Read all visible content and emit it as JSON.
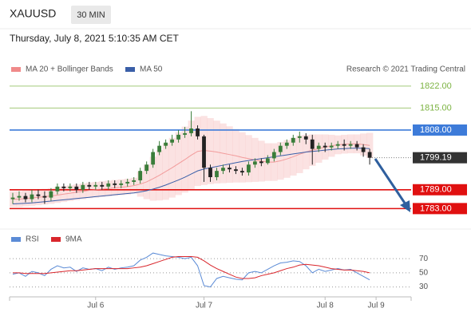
{
  "header": {
    "symbol": "XAUUSD",
    "timeframe": "30 MIN",
    "timestamp": "Thursday, July 8, 2021 5:10:35 AM CET"
  },
  "chart_data": [
    {
      "type": "candlestick",
      "source": "Research © 2021 Trading Central",
      "ylim": [
        1777,
        1824
      ],
      "up_color": "#3a7d3a",
      "down_color": "#222222",
      "open": [
        1786,
        1786.5,
        1787,
        1786,
        1787.5,
        1787,
        1786.5,
        1788.5,
        1790,
        1789.5,
        1790,
        1789,
        1790.5,
        1790,
        1790.5,
        1790,
        1791,
        1790.5,
        1791,
        1791.5,
        1792,
        1795,
        1797,
        1801,
        1803,
        1804,
        1805,
        1806.5,
        1807,
        1808.5,
        1806,
        1796,
        1793,
        1795,
        1796,
        1795.5,
        1795,
        1794.5,
        1797,
        1798,
        1797.5,
        1799,
        1801,
        1803,
        1804,
        1805.5,
        1806,
        1805,
        1802,
        1803,
        1802.5,
        1803,
        1803.5,
        1803,
        1803.5,
        1802.5,
        1801,
        null,
        null,
        null,
        null,
        null,
        null
      ],
      "high": [
        1788,
        1788.5,
        1788,
        1789,
        1789,
        1788.5,
        1789.5,
        1791,
        1791,
        1791,
        1791,
        1791.5,
        1791.5,
        1791.5,
        1791.5,
        1792,
        1792,
        1792,
        1792.5,
        1793,
        1796,
        1798,
        1802,
        1804.5,
        1805,
        1806.5,
        1808,
        1809,
        1814,
        1809.5,
        1806.5,
        1797,
        1796,
        1797,
        1797,
        1796.5,
        1796,
        1798,
        1799,
        1799,
        1800,
        1802,
        1804,
        1805,
        1806.5,
        1807.5,
        1807,
        1806.5,
        1804,
        1804,
        1804,
        1804.5,
        1805,
        1804.5,
        1804.5,
        1803.5,
        1802,
        null,
        null,
        null,
        null,
        null,
        null
      ],
      "low": [
        1784.5,
        1785.5,
        1785,
        1785,
        1786,
        1784.5,
        1785.5,
        1787.5,
        1788.5,
        1788.5,
        1788,
        1788,
        1789,
        1789,
        1789,
        1789,
        1789.5,
        1789.5,
        1790,
        1790.5,
        1791,
        1794,
        1796,
        1800,
        1802,
        1803,
        1804,
        1805.5,
        1806,
        1805,
        1791.5,
        1791.5,
        1792,
        1794,
        1794.5,
        1794,
        1793.5,
        1793.5,
        1796,
        1796.5,
        1797,
        1798,
        1800,
        1802,
        1803,
        1804,
        1803.5,
        1797,
        1801,
        1801,
        1801.5,
        1802,
        1801.5,
        1802,
        1801.5,
        1799.5,
        1797,
        null,
        null,
        null,
        null,
        null,
        null
      ],
      "close": [
        1786.5,
        1787,
        1786,
        1787.5,
        1787,
        1786.5,
        1788.5,
        1790,
        1789.5,
        1790,
        1789,
        1790.5,
        1790,
        1790.5,
        1790,
        1791,
        1790.5,
        1791,
        1791.5,
        1792,
        1795,
        1797,
        1801,
        1803,
        1804,
        1805,
        1806.5,
        1807,
        1808.5,
        1806,
        1796,
        1793,
        1795,
        1796,
        1795.5,
        1795,
        1794.5,
        1797,
        1798,
        1797.5,
        1799,
        1801,
        1803,
        1804,
        1805.5,
        1806,
        1805,
        1802,
        1803,
        1802.5,
        1803,
        1803.5,
        1803,
        1803.5,
        1802.5,
        1801,
        1799.19,
        null,
        null,
        null,
        null,
        null,
        null
      ],
      "series": [
        {
          "name": "MA 20 + Bollinger Bands",
          "color": "#f08a8a",
          "values": [
            1786,
            1786,
            1786.2,
            1786.4,
            1786.6,
            1786.8,
            1787,
            1787.3,
            1787.6,
            1787.9,
            1788.2,
            1788.5,
            1788.8,
            1789,
            1789.2,
            1789.4,
            1789.6,
            1789.8,
            1790,
            1790.3,
            1790.8,
            1791.5,
            1792.5,
            1793.6,
            1794.8,
            1796,
            1797.3,
            1798.6,
            1800,
            1801.2,
            1801.5,
            1801.3,
            1801,
            1800.6,
            1800.2,
            1799.8,
            1799.3,
            1798.9,
            1798.5,
            1798.1,
            1797.8,
            1797.8,
            1798.2,
            1798.8,
            1799.5,
            1800.3,
            1801,
            1801.6,
            1802.1,
            1802.6,
            1803,
            1803.3,
            1803.5,
            1803.6,
            1803.6,
            1803.4,
            1803.1,
            null,
            null,
            null,
            null,
            null,
            null
          ],
          "upper": [
            1788.5,
            1788.5,
            1788.7,
            1788.9,
            1789.1,
            1789.3,
            1789.5,
            1789.8,
            1790.1,
            1790.4,
            1790.7,
            1791,
            1791.3,
            1791.5,
            1791.7,
            1791.9,
            1792.1,
            1792.3,
            1792.5,
            1792.8,
            1794.8,
            1797,
            1799.5,
            1801.6,
            1803.8,
            1805.5,
            1807.3,
            1809.1,
            1811,
            1812.2,
            1812.5,
            1811.8,
            1811,
            1810.1,
            1809.2,
            1808.3,
            1807.3,
            1806.4,
            1805.5,
            1804.6,
            1803.8,
            1803.8,
            1804.2,
            1804.8,
            1805.5,
            1806.3,
            1806.5,
            1806.6,
            1806.6,
            1806.6,
            1806.5,
            1806.3,
            1806.5,
            1806.6,
            1806.6,
            1806.9,
            1807.1,
            null,
            null,
            null,
            null,
            null,
            null
          ],
          "lower": [
            1783.5,
            1783.5,
            1783.7,
            1783.9,
            1784.1,
            1784.3,
            1784.5,
            1784.8,
            1785.1,
            1785.4,
            1785.7,
            1786,
            1786.3,
            1786.5,
            1786.7,
            1786.9,
            1787.1,
            1787.3,
            1787.5,
            1787.8,
            1786.8,
            1786,
            1785.5,
            1785.6,
            1785.8,
            1786.5,
            1787.3,
            1788.1,
            1789,
            1790.2,
            1790.5,
            1790.8,
            1791,
            1791.1,
            1791.2,
            1791.3,
            1791.3,
            1791.4,
            1791.5,
            1791.6,
            1791.8,
            1791.8,
            1792.2,
            1792.8,
            1793.5,
            1794.3,
            1795.5,
            1796.6,
            1797.6,
            1798.6,
            1799.5,
            1800.3,
            1800.5,
            1800.6,
            1800.6,
            1799.9,
            1799.1,
            null,
            null,
            null,
            null,
            null,
            null
          ]
        },
        {
          "name": "MA 50",
          "color": "#3a5fa8",
          "values": [
            1784.5,
            1784.6,
            1784.7,
            1784.8,
            1785,
            1785.2,
            1785.4,
            1785.6,
            1785.8,
            1786,
            1786.2,
            1786.4,
            1786.6,
            1786.8,
            1787,
            1787.2,
            1787.4,
            1787.6,
            1787.8,
            1788,
            1788.3,
            1788.7,
            1789.2,
            1789.8,
            1790.5,
            1791.3,
            1792.1,
            1793,
            1794,
            1795,
            1795.6,
            1796,
            1796.4,
            1796.8,
            1797.2,
            1797.6,
            1798,
            1798.3,
            1798.6,
            1798.9,
            1799.2,
            1799.5,
            1799.8,
            1800.1,
            1800.4,
            1800.7,
            1801,
            1801.2,
            1801.4,
            1801.6,
            1801.8,
            1802,
            1802.1,
            1802.2,
            1802.2,
            1802.2,
            1802.1,
            null,
            null,
            null,
            null,
            null,
            null
          ]
        }
      ],
      "levels": [
        {
          "value": 1822,
          "label": "1822.00",
          "color": "#7cb342",
          "style": "text"
        },
        {
          "value": 1815,
          "label": "1815.00",
          "color": "#7cb342",
          "style": "text"
        },
        {
          "value": 1808,
          "label": "1808.00",
          "color": "#3d7bd9",
          "style": "box"
        },
        {
          "value": 1789,
          "label": "1789.00",
          "color": "#e01010",
          "style": "box"
        },
        {
          "value": 1783,
          "label": "1783.00",
          "color": "#e01010",
          "style": "box"
        }
      ],
      "last": 1799.19,
      "last_color": "#333333"
    },
    {
      "type": "line",
      "categories": [
        null,
        null,
        null,
        null,
        null,
        null,
        null,
        null,
        null,
        null,
        null,
        null,
        null,
        "Jul 6",
        null,
        null,
        null,
        null,
        null,
        null,
        null,
        null,
        null,
        null,
        null,
        null,
        null,
        null,
        null,
        null,
        "Jul 7",
        null,
        null,
        null,
        null,
        null,
        null,
        null,
        null,
        null,
        null,
        null,
        null,
        null,
        null,
        null,
        null,
        null,
        null,
        "Jul 8",
        null,
        null,
        null,
        null,
        null,
        null,
        null,
        "Jul 9",
        null,
        null,
        null,
        null,
        null
      ],
      "ylim": [
        16,
        86
      ],
      "yticks": [
        30,
        50,
        70
      ],
      "grid": true,
      "series": [
        {
          "name": "RSI",
          "color": "#5b8bd6",
          "values": [
            48,
            50,
            45,
            52,
            50,
            46,
            55,
            60,
            57,
            58,
            52,
            57,
            55,
            56,
            53,
            58,
            55,
            57,
            58,
            60,
            68,
            72,
            78,
            76,
            74,
            73,
            72,
            70,
            72,
            60,
            32,
            30,
            42,
            45,
            43,
            41,
            40,
            50,
            52,
            50,
            55,
            60,
            64,
            65,
            67,
            66,
            60,
            50,
            55,
            52,
            54,
            56,
            54,
            55,
            50,
            45,
            40,
            null,
            null,
            null,
            null,
            null,
            null
          ]
        },
        {
          "name": "9MA",
          "color": "#d9262c",
          "values": [
            50,
            50,
            49,
            49,
            49,
            49,
            50,
            51,
            52,
            53,
            53,
            54,
            55,
            56,
            56,
            56,
            56,
            56,
            56,
            57,
            58,
            60,
            63,
            66,
            69,
            72,
            73,
            73,
            73,
            72,
            67,
            61,
            56,
            52,
            48,
            44,
            42,
            42,
            43,
            46,
            48,
            50,
            53,
            56,
            58,
            61,
            62,
            61,
            60,
            58,
            56,
            55,
            54,
            54,
            53,
            52,
            50,
            null,
            null,
            null,
            null,
            null,
            null
          ]
        }
      ]
    }
  ]
}
